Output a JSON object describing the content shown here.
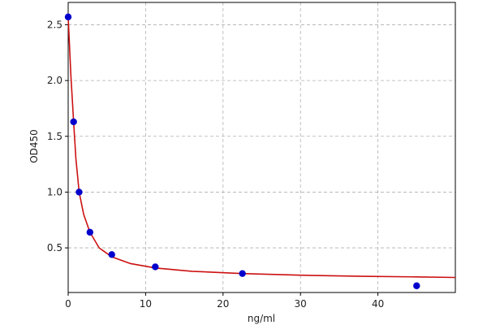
{
  "chart_data": {
    "type": "scatter",
    "xlabel": "ng/ml",
    "ylabel": "OD450",
    "xlim": [
      0,
      50
    ],
    "ylim": [
      0.1,
      2.7
    ],
    "x_ticks": [
      0,
      10,
      20,
      30,
      40
    ],
    "y_ticks": [
      0.5,
      1.0,
      1.5,
      2.0,
      2.5
    ],
    "x_tick_labels": [
      "0",
      "10",
      "20",
      "30",
      "40"
    ],
    "y_tick_labels": [
      "0.5",
      "1.0",
      "1.5",
      "2.0",
      "2.5"
    ],
    "grid": true,
    "series": [
      {
        "kind": "points",
        "color": "#0000cc",
        "x": [
          0,
          0.7,
          1.41,
          2.81,
          5.63,
          11.25,
          22.5,
          45
        ],
        "y": [
          2.57,
          1.63,
          1.0,
          0.64,
          0.44,
          0.33,
          0.27,
          0.16
        ]
      },
      {
        "kind": "fitted-curve",
        "color": "#cc1111",
        "x": [
          0,
          0.35,
          0.7,
          1.0,
          1.41,
          2.0,
          2.81,
          4.0,
          5.63,
          8.0,
          11.25,
          16.0,
          22.5,
          30.0,
          38.0,
          45.0,
          50.0
        ],
        "y": [
          2.57,
          2.05,
          1.63,
          1.3,
          1.0,
          0.8,
          0.64,
          0.5,
          0.42,
          0.36,
          0.32,
          0.29,
          0.27,
          0.255,
          0.245,
          0.24,
          0.235
        ]
      }
    ]
  }
}
